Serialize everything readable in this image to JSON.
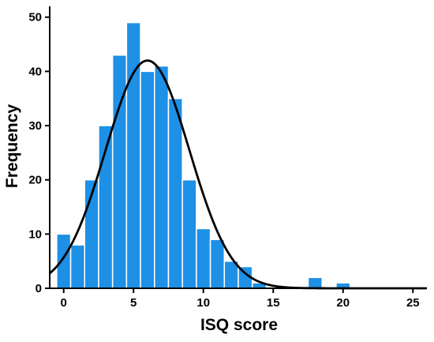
{
  "chart_data": {
    "type": "bar",
    "xlabel": "ISQ score",
    "ylabel": "Frequency",
    "xlim": [
      -1,
      26
    ],
    "ylim": [
      0,
      52
    ],
    "xticks": [
      0,
      5,
      10,
      15,
      20,
      25
    ],
    "yticks": [
      0,
      10,
      20,
      30,
      40,
      50
    ],
    "bin_width": 1,
    "bins": [
      {
        "x": 0,
        "value": 10
      },
      {
        "x": 1,
        "value": 8
      },
      {
        "x": 2,
        "value": 20
      },
      {
        "x": 3,
        "value": 30
      },
      {
        "x": 4,
        "value": 43
      },
      {
        "x": 5,
        "value": 49
      },
      {
        "x": 6,
        "value": 40
      },
      {
        "x": 7,
        "value": 41
      },
      {
        "x": 8,
        "value": 35
      },
      {
        "x": 9,
        "value": 20
      },
      {
        "x": 10,
        "value": 11
      },
      {
        "x": 11,
        "value": 9
      },
      {
        "x": 12,
        "value": 5
      },
      {
        "x": 13,
        "value": 4
      },
      {
        "x": 14,
        "value": 1
      },
      {
        "x": 18,
        "value": 2
      },
      {
        "x": 20,
        "value": 1
      }
    ],
    "normal_curve": {
      "mean": 6.0,
      "sd": 3.0,
      "peak": 42
    },
    "colors": {
      "bar": "#1e90e6",
      "bar_edge": "#ffffff",
      "curve": "#000000",
      "axis": "#000000"
    },
    "grid": false
  }
}
